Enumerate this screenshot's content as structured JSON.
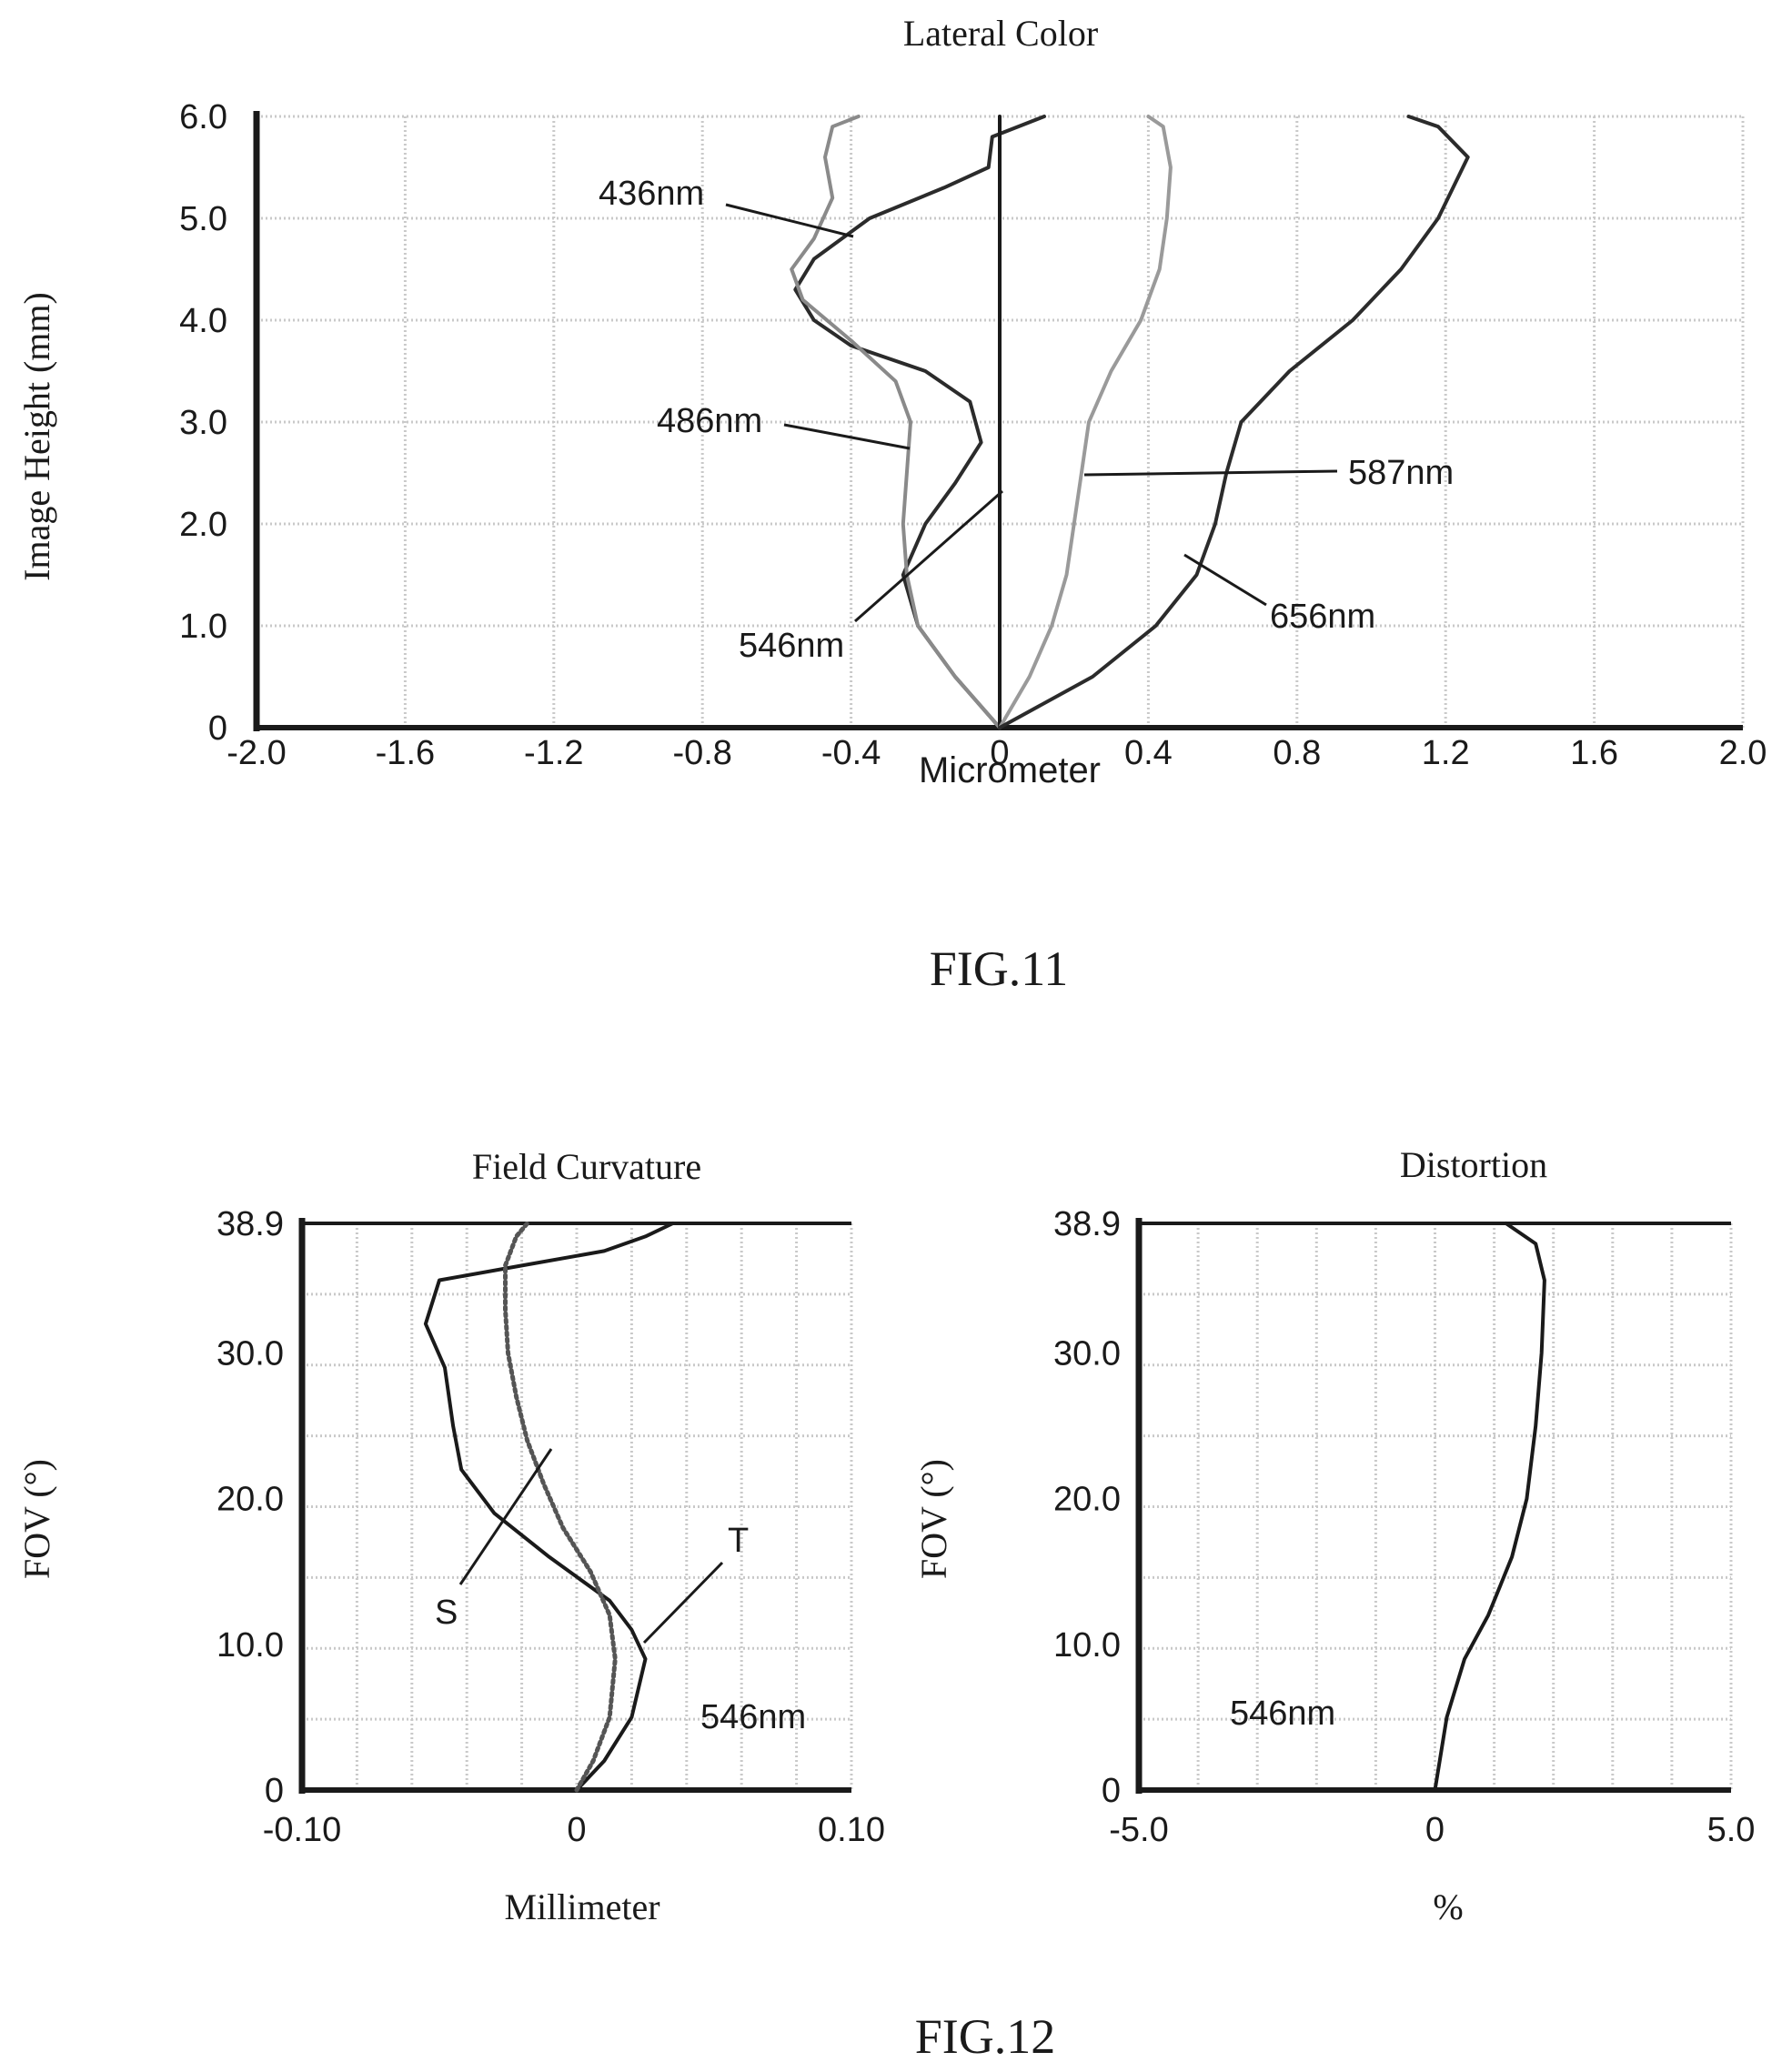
{
  "figures": [
    {
      "id": "fig11",
      "caption": "FIG.11"
    },
    {
      "id": "fig12",
      "caption": "FIG.12"
    }
  ],
  "chart_data": [
    {
      "id": "lateral-color",
      "type": "line",
      "title": "Lateral Color",
      "xlabel": "Micrometer",
      "ylabel": "Image Height (mm)",
      "xlim": [
        -2.0,
        2.0
      ],
      "ylim": [
        0,
        6.0
      ],
      "x_ticks": [
        -2.0,
        -1.6,
        -1.2,
        -0.8,
        -0.4,
        0,
        0.4,
        0.8,
        1.2,
        1.6,
        2.0
      ],
      "x_tick_labels": [
        "-2.0",
        "-1.6",
        "-1.2",
        "-0.8",
        "-0.4",
        "0",
        "0.4",
        "0.8",
        "1.2",
        "1.6",
        "2.0"
      ],
      "y_ticks": [
        0,
        1.0,
        2.0,
        3.0,
        4.0,
        5.0,
        6.0
      ],
      "y_tick_labels": [
        "0",
        "1.0",
        "2.0",
        "3.0",
        "4.0",
        "5.0",
        "6.0"
      ],
      "grid": true,
      "series": [
        {
          "name": "436nm",
          "color": "#2b2b2b",
          "points": [
            [
              0,
              0
            ],
            [
              -0.12,
              0.5
            ],
            [
              -0.22,
              1.0
            ],
            [
              -0.26,
              1.5
            ],
            [
              -0.2,
              2.0
            ],
            [
              -0.12,
              2.4
            ],
            [
              -0.05,
              2.8
            ],
            [
              -0.08,
              3.2
            ],
            [
              -0.2,
              3.5
            ],
            [
              -0.4,
              3.75
            ],
            [
              -0.5,
              4.0
            ],
            [
              -0.55,
              4.3
            ],
            [
              -0.5,
              4.6
            ],
            [
              -0.35,
              5.0
            ],
            [
              -0.15,
              5.3
            ],
            [
              -0.03,
              5.5
            ],
            [
              -0.02,
              5.8
            ],
            [
              0.12,
              6.0
            ]
          ]
        },
        {
          "name": "486nm",
          "color": "#8a8a8a",
          "points": [
            [
              0,
              0
            ],
            [
              -0.12,
              0.5
            ],
            [
              -0.22,
              1.0
            ],
            [
              -0.25,
              1.5
            ],
            [
              -0.26,
              2.0
            ],
            [
              -0.25,
              2.5
            ],
            [
              -0.24,
              3.0
            ],
            [
              -0.28,
              3.4
            ],
            [
              -0.4,
              3.8
            ],
            [
              -0.53,
              4.2
            ],
            [
              -0.56,
              4.5
            ],
            [
              -0.5,
              4.8
            ],
            [
              -0.45,
              5.2
            ],
            [
              -0.47,
              5.6
            ],
            [
              -0.45,
              5.9
            ],
            [
              -0.38,
              6.0
            ]
          ]
        },
        {
          "name": "546nm",
          "color": "#1a1a1a",
          "points": [
            [
              0,
              0
            ],
            [
              0,
              1.0
            ],
            [
              0,
              2.0
            ],
            [
              0,
              3.0
            ],
            [
              0,
              4.0
            ],
            [
              0,
              5.0
            ],
            [
              0,
              6.0
            ]
          ]
        },
        {
          "name": "587nm",
          "color": "#9a9a9a",
          "points": [
            [
              0,
              0
            ],
            [
              0.08,
              0.5
            ],
            [
              0.14,
              1.0
            ],
            [
              0.18,
              1.5
            ],
            [
              0.2,
              2.0
            ],
            [
              0.22,
              2.5
            ],
            [
              0.24,
              3.0
            ],
            [
              0.3,
              3.5
            ],
            [
              0.38,
              4.0
            ],
            [
              0.43,
              4.5
            ],
            [
              0.45,
              5.0
            ],
            [
              0.46,
              5.5
            ],
            [
              0.44,
              5.9
            ],
            [
              0.4,
              6.0
            ]
          ]
        },
        {
          "name": "656nm",
          "color": "#2b2b2b",
          "points": [
            [
              0,
              0
            ],
            [
              0.25,
              0.5
            ],
            [
              0.42,
              1.0
            ],
            [
              0.53,
              1.5
            ],
            [
              0.58,
              2.0
            ],
            [
              0.61,
              2.5
            ],
            [
              0.65,
              3.0
            ],
            [
              0.78,
              3.5
            ],
            [
              0.95,
              4.0
            ],
            [
              1.08,
              4.5
            ],
            [
              1.18,
              5.0
            ],
            [
              1.26,
              5.6
            ],
            [
              1.18,
              5.9
            ],
            [
              1.1,
              6.0
            ]
          ]
        }
      ],
      "annotations": [
        "436nm",
        "486nm",
        "546nm",
        "587nm",
        "656nm"
      ]
    },
    {
      "id": "field-curvature",
      "type": "line",
      "title": "Field Curvature",
      "xlabel": "Millimeter",
      "ylabel": "FOV (°)",
      "xlim": [
        -0.1,
        0.1
      ],
      "ylim": [
        0,
        38.9
      ],
      "x_tick_labels": [
        "-0.10",
        "0",
        "0.10"
      ],
      "y_ticks": [
        0,
        10.0,
        20.0,
        30.0,
        38.9
      ],
      "y_tick_labels": [
        "0",
        "10.0",
        "20.0",
        "30.0",
        "38.9"
      ],
      "grid": true,
      "series": [
        {
          "name": "T",
          "style": "solid",
          "color": "#1a1a1a",
          "points": [
            [
              0,
              0
            ],
            [
              0.01,
              2
            ],
            [
              0.02,
              5
            ],
            [
              0.025,
              9
            ],
            [
              0.02,
              11
            ],
            [
              0.012,
              13
            ],
            [
              -0.01,
              16
            ],
            [
              -0.03,
              19
            ],
            [
              -0.042,
              22
            ],
            [
              -0.045,
              25
            ],
            [
              -0.048,
              29
            ],
            [
              -0.055,
              32
            ],
            [
              -0.05,
              35
            ],
            [
              -0.02,
              36
            ],
            [
              0.01,
              37
            ],
            [
              0.025,
              38
            ],
            [
              0.035,
              38.9
            ]
          ]
        },
        {
          "name": "S",
          "style": "dotted",
          "color": "#555555",
          "points": [
            [
              0,
              0
            ],
            [
              0.006,
              2
            ],
            [
              0.012,
              5
            ],
            [
              0.014,
              9
            ],
            [
              0.012,
              12
            ],
            [
              0.005,
              15
            ],
            [
              -0.005,
              18
            ],
            [
              -0.012,
              21
            ],
            [
              -0.018,
              24
            ],
            [
              -0.022,
              27
            ],
            [
              -0.025,
              30
            ],
            [
              -0.026,
              33
            ],
            [
              -0.026,
              36
            ],
            [
              -0.022,
              38
            ],
            [
              -0.018,
              38.9
            ]
          ]
        }
      ],
      "annotations": [
        "S",
        "T",
        "546nm"
      ]
    },
    {
      "id": "distortion",
      "type": "line",
      "title": "Distortion",
      "xlabel": "%",
      "ylabel": "FOV (°)",
      "xlim": [
        -5.0,
        5.0
      ],
      "ylim": [
        0,
        38.9
      ],
      "x_tick_labels": [
        "-5.0",
        "0",
        "5.0"
      ],
      "y_ticks": [
        0,
        10.0,
        20.0,
        30.0,
        38.9
      ],
      "y_tick_labels": [
        "0",
        "10.0",
        "20.0",
        "30.0",
        "38.9"
      ],
      "grid": true,
      "series": [
        {
          "name": "546nm",
          "color": "#1a1a1a",
          "points": [
            [
              0,
              0
            ],
            [
              0.2,
              5
            ],
            [
              0.5,
              9
            ],
            [
              0.9,
              12
            ],
            [
              1.3,
              16
            ],
            [
              1.55,
              20
            ],
            [
              1.7,
              25
            ],
            [
              1.8,
              30
            ],
            [
              1.85,
              35
            ],
            [
              1.7,
              37.5
            ],
            [
              1.2,
              38.9
            ]
          ]
        }
      ],
      "annotations": [
        "546nm"
      ]
    }
  ]
}
